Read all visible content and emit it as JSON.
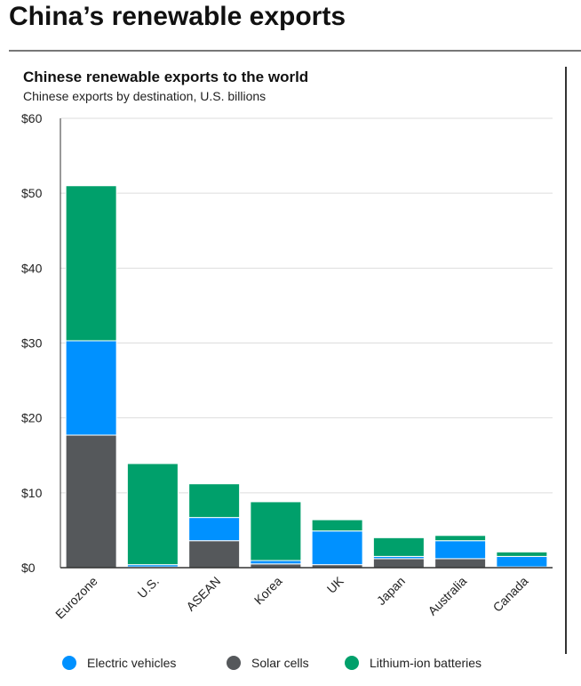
{
  "page_title": "China’s renewable exports",
  "chart_data": {
    "type": "bar",
    "stacked": true,
    "title": "Chinese renewable exports to the world",
    "subtitle": "Chinese exports by destination, U.S. billions",
    "categories": [
      "Eurozone",
      "U.S.",
      "ASEAN",
      "Korea",
      "UK",
      "Japan",
      "Australia",
      "Canada"
    ],
    "series": [
      {
        "name": "Solar cells",
        "color": "#55585b",
        "values": [
          17.7,
          0.1,
          3.6,
          0.5,
          0.4,
          1.2,
          1.2,
          0.1
        ]
      },
      {
        "name": "Electric vehicles",
        "color": "#0091ff",
        "values": [
          12.6,
          0.3,
          3.1,
          0.45,
          4.5,
          0.3,
          2.4,
          1.4
        ]
      },
      {
        "name": "Lithium-ion batteries",
        "color": "#00a06b",
        "values": [
          20.7,
          13.5,
          4.5,
          7.85,
          1.5,
          2.5,
          0.7,
          0.6
        ]
      }
    ],
    "yticks": [
      "$0",
      "$10",
      "$20",
      "$30",
      "$40",
      "$50",
      "$60"
    ],
    "ylim": [
      0,
      60
    ],
    "grid": true,
    "legend_position": "bottom",
    "legend": [
      "Electric vehicles",
      "Solar cells",
      "Lithium-ion batteries"
    ]
  }
}
